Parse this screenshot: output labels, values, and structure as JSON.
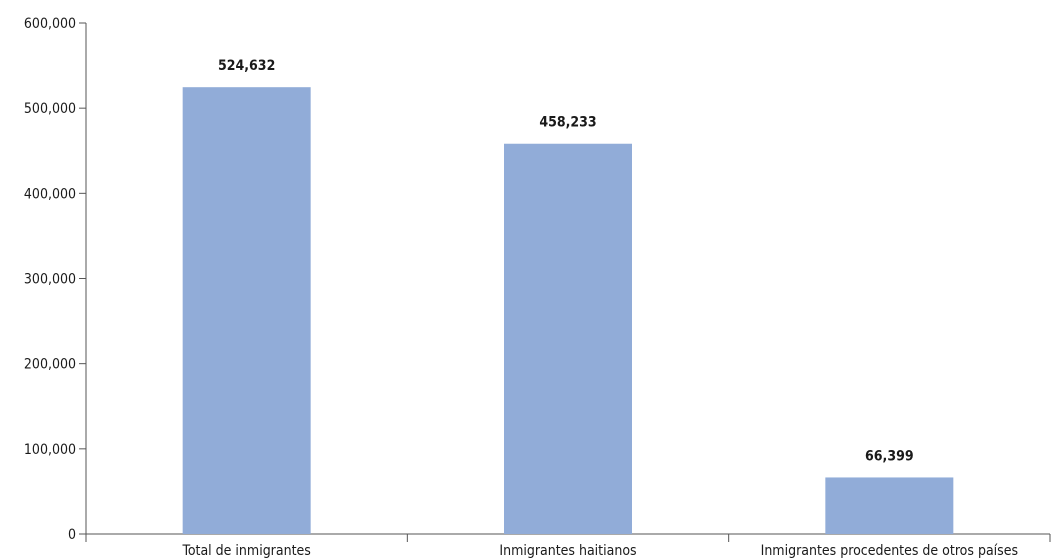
{
  "chart_data": {
    "type": "bar",
    "categories": [
      "Total de inmigrantes",
      "Inmigrantes haitianos",
      "Inmigrantes procedentes de otros países"
    ],
    "values": [
      524632,
      458233,
      66399
    ],
    "value_labels": [
      "524,632",
      "458,233",
      "66,399"
    ],
    "title": "",
    "xlabel": "",
    "ylabel": "",
    "ylim": [
      0,
      600000
    ],
    "yticks": [
      0,
      100000,
      200000,
      300000,
      400000,
      500000,
      600000
    ],
    "ytick_labels": [
      "0",
      "100,000",
      "200,000",
      "300,000",
      "400,000",
      "500,000",
      "600,000"
    ],
    "grid": false,
    "legend": "none",
    "bar_color": "#91acd8"
  }
}
